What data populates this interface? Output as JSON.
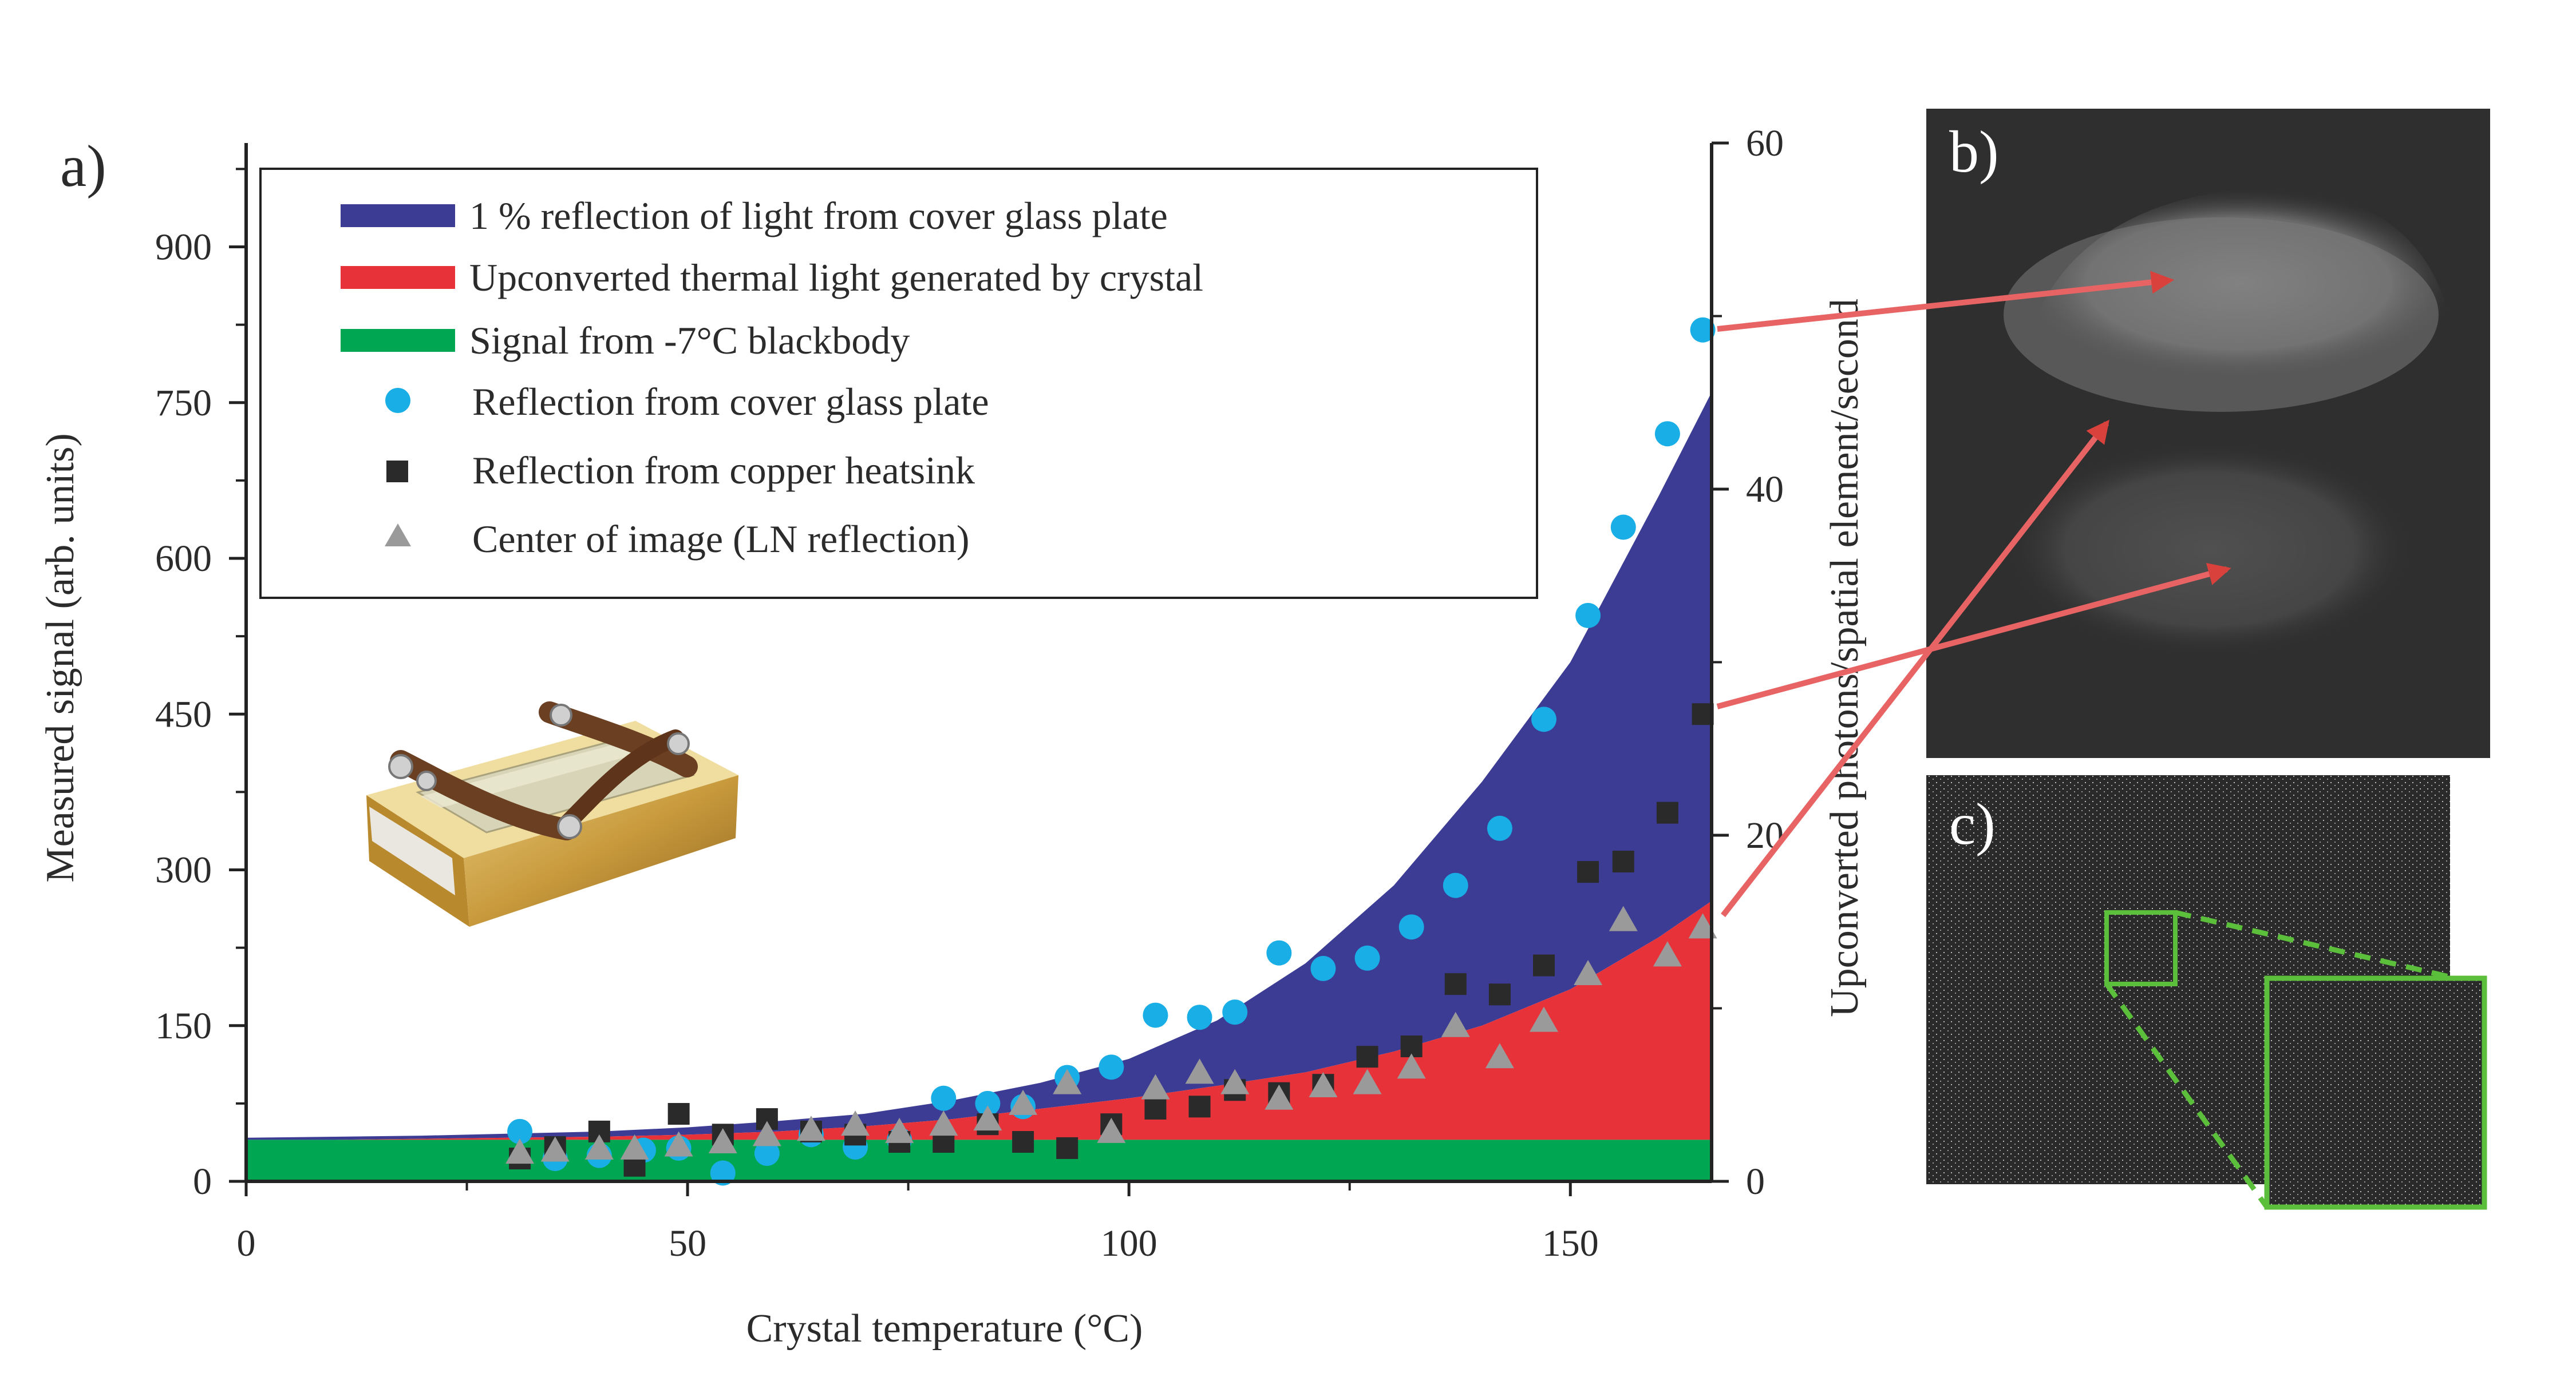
{
  "chart_data": {
    "type": "scatter",
    "panel_labels": {
      "a": "a)",
      "b": "b)",
      "c": "c)"
    },
    "xlabel": "Crystal temperature (°C)",
    "ylabel": "Measured signal (arb. units)",
    "y2label": "Upconverted photons/spatial element/second",
    "xlim": [
      0,
      166
    ],
    "ylim": [
      0,
      1000
    ],
    "y2lim": [
      0,
      60
    ],
    "x_ticks": [
      "0",
      "50",
      "100",
      "150"
    ],
    "y_ticks": [
      "0",
      "150",
      "300",
      "450",
      "600",
      "750",
      "900"
    ],
    "y2_ticks": [
      "0",
      "20",
      "40",
      "60"
    ],
    "legend_position": "top-left",
    "colors": {
      "blue_band": "#3c3c94",
      "red_band": "#e8323a",
      "green_band": "#00a651",
      "cyan_points": "#19aee6",
      "black_points": "#2a2a2a",
      "gray_points": "#9a9a9a",
      "arrow": "#e86464",
      "zoom_box": "#5bbf3c"
    },
    "bands": [
      {
        "name": "1 % reflection of light from cover glass plate",
        "color": "#3c3c94",
        "x": [
          0,
          10,
          20,
          30,
          40,
          50,
          60,
          70,
          80,
          90,
          100,
          110,
          120,
          130,
          140,
          150,
          160,
          166
        ],
        "lower": [
          40,
          40,
          41,
          42,
          43,
          45,
          48,
          53,
          60,
          70,
          80,
          92,
          105,
          125,
          150,
          185,
          235,
          270
        ],
        "upper": [
          42,
          43,
          44,
          46,
          48,
          52,
          58,
          65,
          78,
          95,
          118,
          155,
          210,
          285,
          385,
          500,
          660,
          760
        ]
      },
      {
        "name": "Upconverted thermal light generated by crystal",
        "color": "#e8323a",
        "x": [
          0,
          10,
          20,
          30,
          40,
          50,
          60,
          70,
          80,
          90,
          100,
          110,
          120,
          130,
          140,
          150,
          160,
          166
        ],
        "lower": [
          40,
          40,
          40,
          40,
          40,
          40,
          40,
          40,
          40,
          40,
          40,
          40,
          40,
          40,
          40,
          40,
          40,
          40
        ],
        "upper": [
          40,
          40,
          41,
          42,
          43,
          45,
          48,
          53,
          60,
          70,
          80,
          92,
          105,
          125,
          150,
          185,
          235,
          270
        ]
      },
      {
        "name": "Signal from -7°C blackbody",
        "color": "#00a651",
        "x": [
          0,
          166
        ],
        "lower": [
          0,
          0
        ],
        "upper": [
          40,
          40
        ]
      }
    ],
    "series": [
      {
        "name": "Reflection from cover glass plate",
        "marker": "circle",
        "color": "#19aee6",
        "x": [
          31,
          35,
          40,
          45,
          49,
          54,
          59,
          64,
          69,
          74,
          79,
          84,
          88,
          93,
          98,
          103,
          108,
          112,
          117,
          122,
          127,
          132,
          137,
          142,
          147,
          152,
          156,
          161,
          165
        ],
        "y": [
          48,
          22,
          25,
          30,
          32,
          8,
          27,
          45,
          33,
          40,
          80,
          75,
          72,
          100,
          110,
          160,
          158,
          163,
          220,
          205,
          215,
          245,
          285,
          340,
          445,
          545,
          630,
          720,
          820
        ]
      },
      {
        "name": "Reflection from copper heatsink",
        "marker": "square",
        "color": "#2a2a2a",
        "x": [
          31,
          35,
          40,
          44,
          49,
          54,
          59,
          64,
          69,
          74,
          79,
          84,
          88,
          93,
          98,
          103,
          108,
          112,
          117,
          122,
          127,
          132,
          137,
          142,
          147,
          152,
          156,
          161,
          165
        ],
        "y": [
          22,
          33,
          48,
          15,
          65,
          45,
          60,
          48,
          45,
          38,
          38,
          55,
          38,
          32,
          55,
          70,
          72,
          88,
          85,
          93,
          120,
          130,
          190,
          180,
          208,
          298,
          308,
          355,
          450
        ]
      },
      {
        "name": "Center of image (LN reflection)",
        "marker": "triangle",
        "color": "#9a9a9a",
        "x": [
          31,
          35,
          40,
          44,
          49,
          54,
          59,
          64,
          69,
          74,
          79,
          84,
          88,
          93,
          98,
          103,
          108,
          112,
          117,
          122,
          127,
          132,
          137,
          142,
          147,
          152,
          156,
          161,
          165
        ],
        "y": [
          28,
          30,
          32,
          32,
          35,
          38,
          45,
          50,
          55,
          48,
          55,
          60,
          75,
          95,
          48,
          90,
          105,
          95,
          80,
          92,
          95,
          110,
          150,
          120,
          155,
          200,
          252,
          218,
          245
        ]
      }
    ]
  }
}
